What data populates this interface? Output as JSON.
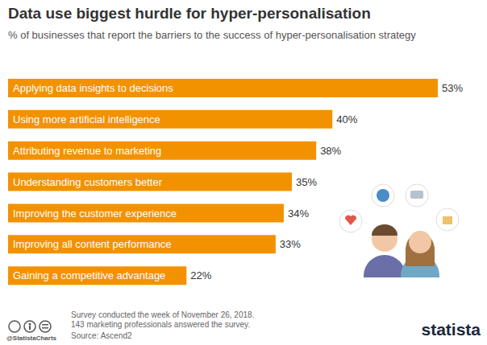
{
  "chart_data": {
    "type": "bar",
    "orientation": "horizontal",
    "title": "Data use biggest hurdle for hyper-personalisation",
    "subtitle": "% of businesses that report the barriers to the success of hyper-personalisation strategy",
    "categories": [
      "Applying data insights to decisions",
      "Using more artificial intelligence",
      "Attributing revenue to marketing",
      "Understanding customers better",
      "Improving the customer experience",
      "Improving all content performance",
      "Gaining a competitive advantage"
    ],
    "values": [
      53,
      40,
      38,
      35,
      34,
      33,
      22
    ],
    "value_labels": [
      "53%",
      "40%",
      "38%",
      "35%",
      "34%",
      "33%",
      "22%"
    ],
    "data_labels": true,
    "tick_labels": false,
    "grid": false,
    "color": "#f39200",
    "notes": [
      "Survey conducted the week of November 26, 2018.",
      "143 marketing professionals answered the survey."
    ],
    "source": "Source: Ascend2",
    "credit": "@StatistaCharts",
    "brand": "statista"
  }
}
